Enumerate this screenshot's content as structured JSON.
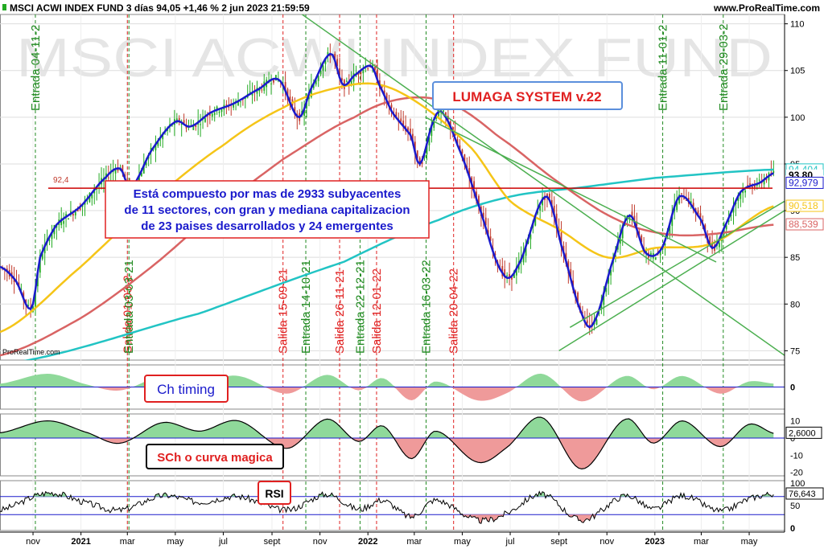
{
  "header": {
    "title": "MSCI ACWI INDEX FUND 3 días 94,05 +1,46 % 2 jun 2023 21:59:59",
    "source": "www.ProRealTime.com",
    "watermark": "MSCI ACWI INDEX FUND",
    "logo": "ProRealTime.com"
  },
  "colors": {
    "price_up": "#22aa22",
    "price_down": "#c0392b",
    "mm_blue": "#1a1acc",
    "ma_yellow": "#f5c518",
    "ma_red": "#d96464",
    "ma_cyan": "#22c4c4",
    "entrada": "#228b22",
    "salida": "#e02020",
    "osc_pos": "#8fd99a",
    "osc_neg": "#ef9a9a"
  },
  "annotations": {
    "system_box": "LUMAGA SYSTEM v.22",
    "info_box": [
      "Está compuesto por mas de 2933 subyacentes",
      "de 11 sectores, con gran y mediana capitalizacion",
      "de 23 paises desarrollados y 24 emergentes"
    ],
    "info_level_label": "92,4",
    "panel2_label": "Ch timing",
    "panel3_label": "SCh o curva magica",
    "panel4_label": "RSI"
  },
  "signals": [
    {
      "label": "Entrada 04-11-2",
      "type": "entrada",
      "x": "2020-11-04"
    },
    {
      "label": "Salida 01-03-2",
      "type": "salida",
      "x": "2021-03-01"
    },
    {
      "label": "Entrada 03-03-21",
      "type": "entrada",
      "x": "2021-03-03"
    },
    {
      "label": "Salida 15-09-21",
      "type": "salida",
      "x": "2021-09-15"
    },
    {
      "label": "Entrada 14-10-21",
      "type": "entrada",
      "x": "2021-10-14"
    },
    {
      "label": "Salida 26-11-21",
      "type": "salida",
      "x": "2021-11-26"
    },
    {
      "label": "Entrada 22-12-21",
      "type": "entrada",
      "x": "2021-12-22"
    },
    {
      "label": "Salida 12-01-22",
      "type": "salida",
      "x": "2022-01-12"
    },
    {
      "label": "Entrada 16-03-22",
      "type": "entrada",
      "x": "2022-03-16"
    },
    {
      "label": "Salida 20-04-22",
      "type": "salida",
      "x": "2022-04-20"
    },
    {
      "label": "Entrada 11-01-2",
      "type": "entrada",
      "x": "2023-01-11"
    },
    {
      "label": "Entrada 29-03-2",
      "type": "entrada",
      "x": "2023-03-29"
    }
  ],
  "chart_data": {
    "type": "line",
    "title": "MSCI ACWI INDEX FUND 3 días 94,05 +1,46 % 2 jun 2023 21:59:59",
    "x_axis": {
      "ticks": [
        {
          "label": "nov",
          "x": "2020-11-01",
          "bold": false
        },
        {
          "label": "2021",
          "x": "2021-01-01",
          "bold": true
        },
        {
          "label": "mar",
          "x": "2021-03-01",
          "bold": false
        },
        {
          "label": "may",
          "x": "2021-05-01",
          "bold": false
        },
        {
          "label": "jul",
          "x": "2021-07-01",
          "bold": false
        },
        {
          "label": "sept",
          "x": "2021-09-01",
          "bold": false
        },
        {
          "label": "nov",
          "x": "2021-11-01",
          "bold": false
        },
        {
          "label": "2022",
          "x": "2022-01-01",
          "bold": true
        },
        {
          "label": "mar",
          "x": "2022-03-01",
          "bold": false
        },
        {
          "label": "may",
          "x": "2022-05-01",
          "bold": false
        },
        {
          "label": "jul",
          "x": "2022-07-01",
          "bold": false
        },
        {
          "label": "sept",
          "x": "2022-09-01",
          "bold": false
        },
        {
          "label": "nov",
          "x": "2022-11-01",
          "bold": false
        },
        {
          "label": "2023",
          "x": "2023-01-01",
          "bold": true
        },
        {
          "label": "mar",
          "x": "2023-03-01",
          "bold": false
        },
        {
          "label": "may",
          "x": "2023-05-01",
          "bold": false
        }
      ]
    },
    "price": {
      "ylim": [
        74,
        111
      ],
      "yticks": [
        75,
        80,
        85,
        90,
        95,
        100,
        105,
        110
      ],
      "series": {
        "price_anchors": [
          [
            "2020-09-20",
            84
          ],
          [
            "2020-10-10",
            82.5
          ],
          [
            "2020-10-30",
            79.5
          ],
          [
            "2020-11-10",
            85
          ],
          [
            "2020-12-01",
            88.5
          ],
          [
            "2021-01-01",
            90.5
          ],
          [
            "2021-02-01",
            93.5
          ],
          [
            "2021-02-20",
            94.5
          ],
          [
            "2021-03-05",
            92.5
          ],
          [
            "2021-04-01",
            96.5
          ],
          [
            "2021-05-01",
            99.5
          ],
          [
            "2021-05-20",
            99
          ],
          [
            "2021-06-15",
            100.5
          ],
          [
            "2021-07-15",
            101.5
          ],
          [
            "2021-08-15",
            103
          ],
          [
            "2021-09-10",
            104
          ],
          [
            "2021-10-05",
            100
          ],
          [
            "2021-10-20",
            103
          ],
          [
            "2021-11-15",
            106.8
          ],
          [
            "2021-11-30",
            103.5
          ],
          [
            "2021-12-15",
            104.5
          ],
          [
            "2022-01-05",
            105.5
          ],
          [
            "2022-01-15",
            103.5
          ],
          [
            "2022-02-01",
            100.5
          ],
          [
            "2022-02-25",
            98
          ],
          [
            "2022-03-08",
            95
          ],
          [
            "2022-03-25",
            99.5
          ],
          [
            "2022-04-05",
            100.5
          ],
          [
            "2022-04-25",
            97
          ],
          [
            "2022-05-20",
            91
          ],
          [
            "2022-06-20",
            83.5
          ],
          [
            "2022-07-10",
            84
          ],
          [
            "2022-08-15",
            91.5
          ],
          [
            "2022-09-05",
            86
          ],
          [
            "2022-09-30",
            79
          ],
          [
            "2022-10-15",
            78
          ],
          [
            "2022-11-10",
            85
          ],
          [
            "2022-11-30",
            89.5
          ],
          [
            "2022-12-20",
            85.5
          ],
          [
            "2023-01-10",
            86
          ],
          [
            "2023-02-01",
            91.5
          ],
          [
            "2023-03-01",
            89
          ],
          [
            "2023-03-15",
            86
          ],
          [
            "2023-04-01",
            88.5
          ],
          [
            "2023-04-20",
            92
          ],
          [
            "2023-05-15",
            93
          ],
          [
            "2023-06-02",
            94.05
          ]
        ],
        "ma_yellow_anchors": [
          [
            "2020-09-20",
            77
          ],
          [
            "2021-01-01",
            84
          ],
          [
            "2021-04-01",
            91
          ],
          [
            "2021-07-01",
            97
          ],
          [
            "2021-09-15",
            101
          ],
          [
            "2021-11-15",
            103
          ],
          [
            "2022-01-15",
            103.5
          ],
          [
            "2022-03-15",
            101
          ],
          [
            "2022-05-15",
            96.5
          ],
          [
            "2022-07-01",
            91
          ],
          [
            "2022-09-01",
            88
          ],
          [
            "2022-11-01",
            85
          ],
          [
            "2023-01-01",
            86
          ],
          [
            "2023-03-15",
            86.5
          ],
          [
            "2023-06-02",
            90.5
          ]
        ],
        "ma_red_anchors": [
          [
            "2020-09-20",
            74.5
          ],
          [
            "2021-01-01",
            78.5
          ],
          [
            "2021-04-01",
            84
          ],
          [
            "2021-07-01",
            90.5
          ],
          [
            "2021-09-15",
            95.5
          ],
          [
            "2021-12-15",
            100
          ],
          [
            "2022-02-15",
            102
          ],
          [
            "2022-04-15",
            101.5
          ],
          [
            "2022-06-15",
            98
          ],
          [
            "2022-09-01",
            93
          ],
          [
            "2022-11-15",
            89
          ],
          [
            "2023-01-15",
            87.5
          ],
          [
            "2023-03-15",
            87.5
          ],
          [
            "2023-06-02",
            88.5
          ]
        ],
        "ma_cyan_anchors": [
          [
            "2020-09-20",
            73.5
          ],
          [
            "2021-06-01",
            79
          ],
          [
            "2021-12-01",
            84.5
          ],
          [
            "2022-04-01",
            89
          ],
          [
            "2022-07-01",
            91.5
          ],
          [
            "2022-10-01",
            92.5
          ],
          [
            "2023-01-01",
            93.5
          ],
          [
            "2023-06-02",
            94.4
          ]
        ]
      },
      "trendlines": [
        {
          "from": [
            "2021-10-01",
            111.5
          ],
          "to": [
            "2023-06-15",
            74.5
          ]
        },
        {
          "from": [
            "2022-03-15",
            100
          ],
          "to": [
            "2023-03-20",
            84.5
          ]
        },
        {
          "from": [
            "2022-09-01",
            75
          ],
          "to": [
            "2023-06-15",
            90
          ]
        },
        {
          "from": [
            "2022-09-15",
            77.5
          ],
          "to": [
            "2023-06-15",
            91
          ]
        }
      ],
      "level_line": 92.4,
      "right_labels": [
        {
          "label": "94,404",
          "value": 94.404,
          "color": "#22c4c4"
        },
        {
          "label": "93,80",
          "value": 93.8,
          "color": "#000000"
        },
        {
          "label": "92,979",
          "value": 92.979,
          "color": "#1a1acc"
        },
        {
          "label": "90,518",
          "value": 90.518,
          "color": "#f5c518"
        },
        {
          "label": "88,539",
          "value": 88.539,
          "color": "#d96464"
        }
      ]
    },
    "ch_timing": {
      "ylim": [
        -2,
        2
      ],
      "yticks": [
        0
      ],
      "anchors": [
        [
          "2020-09-20",
          0.3
        ],
        [
          "2020-11-20",
          1.2
        ],
        [
          "2021-01-10",
          0.2
        ],
        [
          "2021-02-20",
          -0.3
        ],
        [
          "2021-04-15",
          1.0
        ],
        [
          "2021-06-01",
          0.5
        ],
        [
          "2021-07-20",
          1.0
        ],
        [
          "2021-09-20",
          -0.6
        ],
        [
          "2021-11-10",
          1.1
        ],
        [
          "2021-12-20",
          -0.3
        ],
        [
          "2022-01-20",
          0.8
        ],
        [
          "2022-02-25",
          -1.2
        ],
        [
          "2022-03-28",
          0.5
        ],
        [
          "2022-05-20",
          -1.2
        ],
        [
          "2022-06-25",
          -0.6
        ],
        [
          "2022-08-10",
          1.2
        ],
        [
          "2022-09-30",
          -1.3
        ],
        [
          "2022-11-25",
          1.0
        ],
        [
          "2022-12-30",
          -0.2
        ],
        [
          "2023-02-05",
          1.0
        ],
        [
          "2023-03-25",
          -0.6
        ],
        [
          "2023-05-01",
          0.5
        ],
        [
          "2023-06-02",
          0.3
        ]
      ]
    },
    "sch": {
      "ylim": [
        -22,
        14
      ],
      "yticks": [
        10,
        0,
        -10,
        -20
      ],
      "last_label": "2,6000",
      "last_value": 2.6,
      "anchors": [
        [
          "2020-09-20",
          3
        ],
        [
          "2020-11-20",
          10
        ],
        [
          "2021-01-10",
          3
        ],
        [
          "2021-02-20",
          -3
        ],
        [
          "2021-04-15",
          9
        ],
        [
          "2021-06-01",
          4
        ],
        [
          "2021-07-20",
          10
        ],
        [
          "2021-09-20",
          -6
        ],
        [
          "2021-11-10",
          11
        ],
        [
          "2021-12-20",
          -2
        ],
        [
          "2022-01-20",
          7
        ],
        [
          "2022-02-25",
          -12
        ],
        [
          "2022-03-28",
          4
        ],
        [
          "2022-05-20",
          -14
        ],
        [
          "2022-06-25",
          -6
        ],
        [
          "2022-08-10",
          12
        ],
        [
          "2022-09-30",
          -18
        ],
        [
          "2022-11-25",
          11
        ],
        [
          "2022-12-30",
          -3
        ],
        [
          "2023-02-05",
          10
        ],
        [
          "2023-03-25",
          -5
        ],
        [
          "2023-05-01",
          8
        ],
        [
          "2023-06-02",
          2.6
        ]
      ]
    },
    "rsi": {
      "ylim": [
        -5,
        105
      ],
      "yticks": [
        100,
        50,
        0
      ],
      "levels": [
        70,
        30
      ],
      "last_label": "76,643",
      "last_value": 76.643,
      "anchors": [
        [
          "2020-09-20",
          40
        ],
        [
          "2020-11-20",
          78
        ],
        [
          "2021-01-10",
          55
        ],
        [
          "2021-02-20",
          40
        ],
        [
          "2021-04-15",
          72
        ],
        [
          "2021-06-01",
          58
        ],
        [
          "2021-07-20",
          70
        ],
        [
          "2021-09-20",
          40
        ],
        [
          "2021-11-10",
          75
        ],
        [
          "2021-12-20",
          42
        ],
        [
          "2022-01-20",
          62
        ],
        [
          "2022-02-25",
          25
        ],
        [
          "2022-03-28",
          62
        ],
        [
          "2022-05-20",
          18
        ],
        [
          "2022-06-25",
          32
        ],
        [
          "2022-08-10",
          75
        ],
        [
          "2022-09-30",
          18
        ],
        [
          "2022-11-25",
          72
        ],
        [
          "2022-12-30",
          42
        ],
        [
          "2023-02-05",
          72
        ],
        [
          "2023-03-25",
          38
        ],
        [
          "2023-05-01",
          65
        ],
        [
          "2023-06-02",
          76.643
        ]
      ]
    }
  }
}
